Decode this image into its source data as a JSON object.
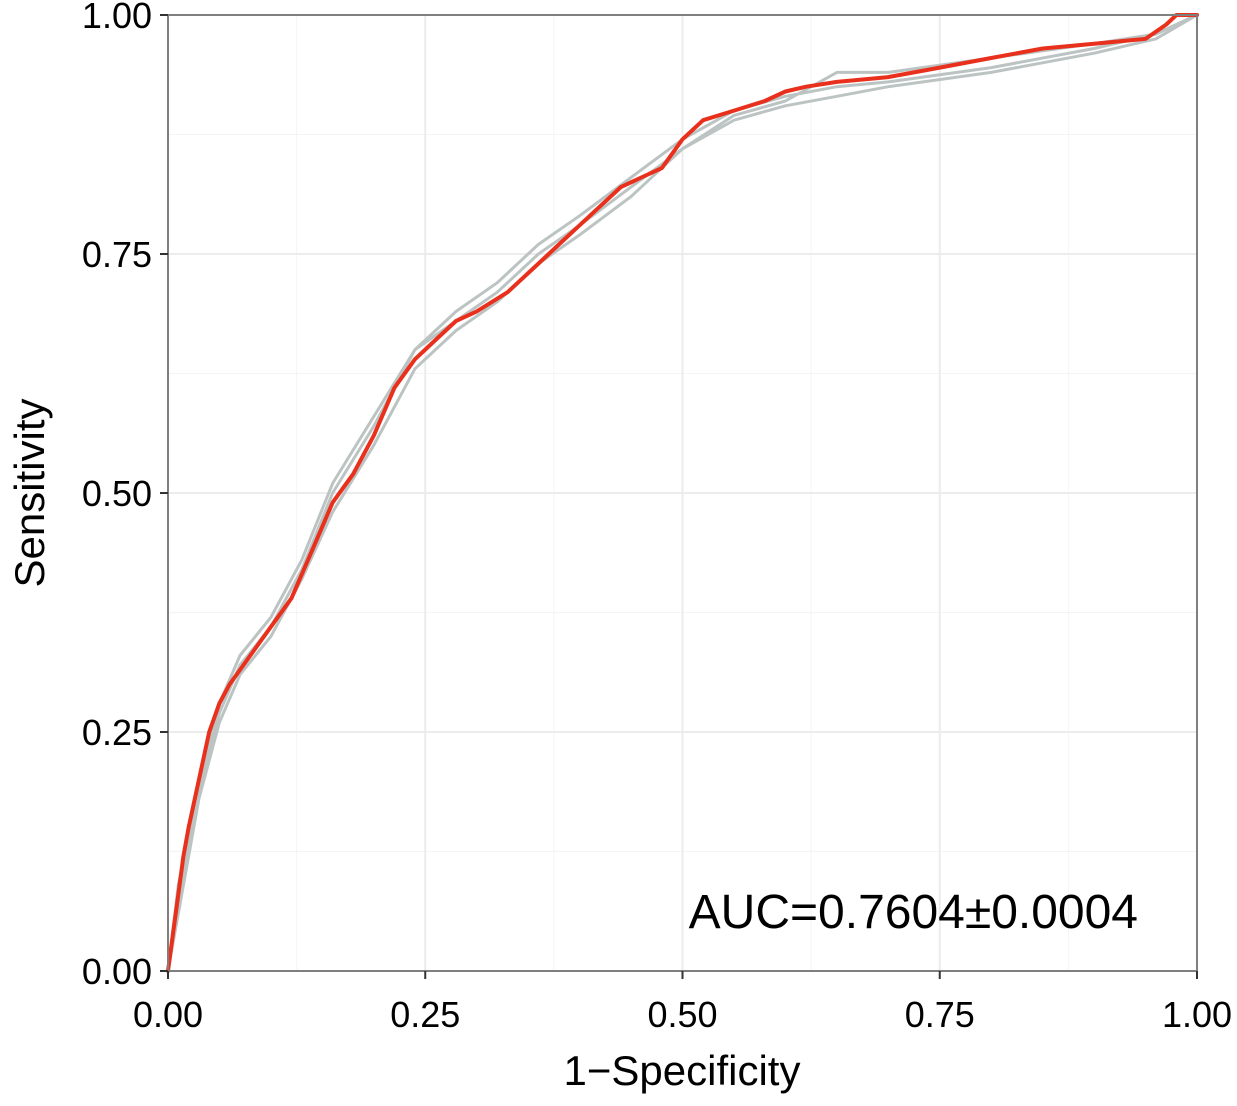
{
  "chart_data": {
    "type": "line",
    "xlabel": "1−Specificity",
    "ylabel": "Sensitivity",
    "xlim": [
      0,
      1
    ],
    "ylim": [
      0,
      1
    ],
    "x_ticks": [
      "0.00",
      "0.25",
      "0.50",
      "0.75",
      "1.00"
    ],
    "y_ticks": [
      "0.00",
      "0.25",
      "0.50",
      "0.75",
      "1.00"
    ],
    "grid": true,
    "annotation": "AUC=0.7604±0.0004",
    "colors": {
      "mean_curve": "#e8301c",
      "replicate_curves": "#bcc4c3",
      "grid": "#ececec",
      "panel_border": "#7f7f7f"
    },
    "series": [
      {
        "role": "mean",
        "x": [
          0,
          0.005,
          0.01,
          0.015,
          0.02,
          0.03,
          0.04,
          0.05,
          0.06,
          0.08,
          0.1,
          0.12,
          0.14,
          0.16,
          0.18,
          0.2,
          0.22,
          0.24,
          0.26,
          0.28,
          0.3,
          0.33,
          0.36,
          0.38,
          0.4,
          0.42,
          0.44,
          0.46,
          0.48,
          0.5,
          0.52,
          0.55,
          0.58,
          0.6,
          0.62,
          0.65,
          0.7,
          0.75,
          0.8,
          0.85,
          0.9,
          0.95,
          0.97,
          0.98,
          1.0
        ],
        "y": [
          0,
          0.04,
          0.08,
          0.12,
          0.15,
          0.2,
          0.25,
          0.28,
          0.3,
          0.33,
          0.36,
          0.39,
          0.44,
          0.49,
          0.52,
          0.56,
          0.61,
          0.64,
          0.66,
          0.68,
          0.69,
          0.71,
          0.74,
          0.76,
          0.78,
          0.8,
          0.82,
          0.83,
          0.84,
          0.87,
          0.89,
          0.9,
          0.91,
          0.92,
          0.925,
          0.93,
          0.935,
          0.945,
          0.955,
          0.965,
          0.97,
          0.975,
          0.99,
          1.0,
          1.0
        ]
      },
      {
        "role": "replicate",
        "x": [
          0,
          0.01,
          0.02,
          0.03,
          0.05,
          0.07,
          0.1,
          0.13,
          0.16,
          0.2,
          0.24,
          0.28,
          0.32,
          0.36,
          0.4,
          0.45,
          0.5,
          0.55,
          0.6,
          0.65,
          0.7,
          0.8,
          0.9,
          0.96,
          1.0
        ],
        "y": [
          0,
          0.07,
          0.13,
          0.19,
          0.27,
          0.32,
          0.36,
          0.42,
          0.5,
          0.57,
          0.65,
          0.69,
          0.72,
          0.76,
          0.79,
          0.83,
          0.87,
          0.9,
          0.915,
          0.925,
          0.93,
          0.945,
          0.965,
          0.98,
          1.0
        ]
      },
      {
        "role": "replicate",
        "x": [
          0,
          0.01,
          0.02,
          0.03,
          0.05,
          0.07,
          0.1,
          0.13,
          0.16,
          0.2,
          0.24,
          0.28,
          0.32,
          0.36,
          0.4,
          0.45,
          0.5,
          0.55,
          0.6,
          0.65,
          0.7,
          0.8,
          0.9,
          0.96,
          1.0
        ],
        "y": [
          0,
          0.09,
          0.14,
          0.2,
          0.28,
          0.33,
          0.37,
          0.43,
          0.51,
          0.58,
          0.65,
          0.68,
          0.71,
          0.75,
          0.78,
          0.82,
          0.86,
          0.895,
          0.91,
          0.94,
          0.94,
          0.955,
          0.97,
          0.98,
          1.0
        ]
      },
      {
        "role": "replicate",
        "x": [
          0,
          0.01,
          0.02,
          0.03,
          0.05,
          0.07,
          0.1,
          0.13,
          0.16,
          0.2,
          0.24,
          0.28,
          0.32,
          0.36,
          0.4,
          0.45,
          0.5,
          0.55,
          0.6,
          0.65,
          0.7,
          0.8,
          0.9,
          0.96,
          1.0
        ],
        "y": [
          0,
          0.06,
          0.12,
          0.18,
          0.26,
          0.31,
          0.35,
          0.41,
          0.48,
          0.55,
          0.63,
          0.67,
          0.7,
          0.74,
          0.77,
          0.81,
          0.86,
          0.89,
          0.905,
          0.915,
          0.925,
          0.94,
          0.96,
          0.975,
          1.0
        ]
      }
    ]
  }
}
